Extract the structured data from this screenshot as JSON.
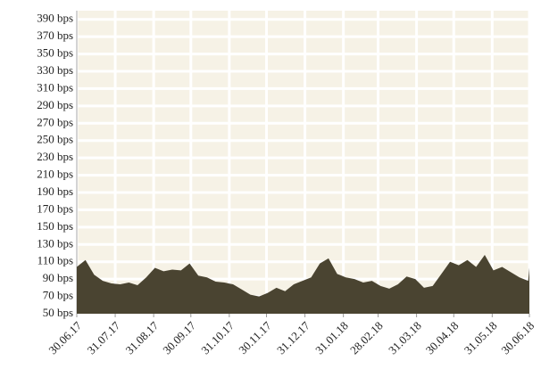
{
  "chart_data": {
    "type": "area",
    "x": [
      "30.06.17",
      "07.07.17",
      "14.07.17",
      "21.07.17",
      "28.07.17",
      "04.08.17",
      "11.08.17",
      "18.08.17",
      "25.08.17",
      "01.09.17",
      "08.09.17",
      "15.09.17",
      "22.09.17",
      "29.09.17",
      "06.10.17",
      "13.10.17",
      "20.10.17",
      "27.10.17",
      "03.11.17",
      "10.11.17",
      "17.11.17",
      "24.11.17",
      "01.12.17",
      "08.12.17",
      "15.12.17",
      "22.12.17",
      "29.12.17",
      "05.01.18",
      "12.01.18",
      "19.01.18",
      "26.01.18",
      "02.02.18",
      "09.02.18",
      "16.02.18",
      "23.02.18",
      "02.03.18",
      "09.03.18",
      "16.03.18",
      "23.03.18",
      "30.03.18",
      "06.04.18",
      "13.04.18",
      "20.04.18",
      "27.04.18",
      "04.05.18",
      "11.05.18",
      "18.05.18",
      "25.05.18",
      "01.06.18",
      "08.06.18",
      "15.06.18",
      "22.06.18",
      "29.06.18",
      "30.06.18"
    ],
    "series": [
      {
        "color": "#4a4431",
        "values": [
          104,
          112,
          95,
          88,
          85,
          84,
          86,
          83,
          92,
          103,
          99,
          101,
          100,
          108,
          94,
          92,
          87,
          86,
          84,
          78,
          72,
          70,
          74,
          80,
          76,
          84,
          88,
          92,
          108,
          114,
          96,
          92,
          90,
          86,
          88,
          82,
          79,
          84,
          93,
          90,
          80,
          82,
          96,
          110,
          106,
          112,
          104,
          118,
          100,
          104,
          98,
          92,
          88,
          103
        ]
      }
    ],
    "xlim": [
      "30.06.17",
      "30.06.18"
    ],
    "xticks": [
      "30.06.17",
      "31.07.17",
      "31.08.17",
      "30.09.17",
      "31.10.17",
      "30.11.17",
      "31.12.17",
      "31.01.18",
      "28.02.18",
      "31.03.18",
      "30.04.18",
      "31.05.18",
      "30.06.18"
    ],
    "ylim": [
      50,
      400
    ],
    "yticks": [
      {
        "value": 50,
        "label": "50 bps"
      },
      {
        "value": 70,
        "label": "70 bps"
      },
      {
        "value": 90,
        "label": "90 bps"
      },
      {
        "value": 110,
        "label": "110 bps"
      },
      {
        "value": 130,
        "label": "130 bps"
      },
      {
        "value": 150,
        "label": "150 bps"
      },
      {
        "value": 170,
        "label": "170 bps"
      },
      {
        "value": 190,
        "label": "190 bps"
      },
      {
        "value": 210,
        "label": "210 bps"
      },
      {
        "value": 230,
        "label": "230 bps"
      },
      {
        "value": 250,
        "label": "250 bps"
      },
      {
        "value": 270,
        "label": "270 bps"
      },
      {
        "value": 290,
        "label": "290 bps"
      },
      {
        "value": 310,
        "label": "310 bps"
      },
      {
        "value": 330,
        "label": "330 bps"
      },
      {
        "value": 350,
        "label": "350 bps"
      },
      {
        "value": 370,
        "label": "370 bps"
      },
      {
        "value": 390,
        "label": "390 bps"
      }
    ],
    "grid": true
  }
}
